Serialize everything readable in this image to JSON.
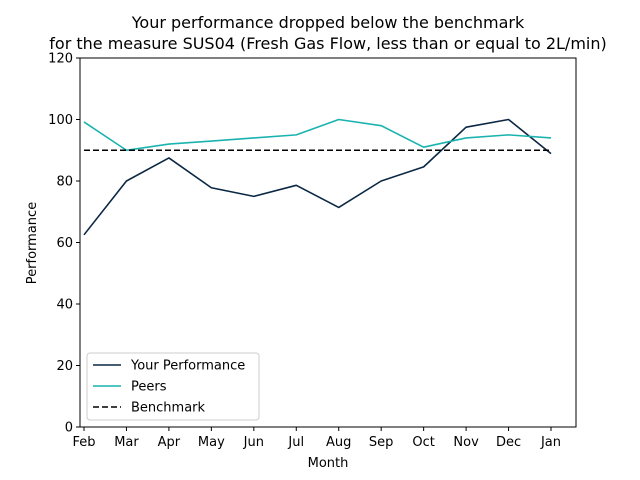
{
  "chart_data": {
    "type": "line",
    "title_line1": "Your performance dropped below the benchmark",
    "title_line2": "for the measure SUS04 (Fresh Gas Flow, less than or equal to 2L/min)",
    "xlabel": "Month",
    "ylabel": "Performance",
    "categories": [
      "Feb",
      "Mar",
      "Apr",
      "May",
      "Jun",
      "Jul",
      "Aug",
      "Sep",
      "Oct",
      "Nov",
      "Dec",
      "Jan"
    ],
    "ylim": [
      0,
      120
    ],
    "yticks": [
      0,
      20,
      40,
      60,
      80,
      100,
      120
    ],
    "grid": false,
    "legend_position": "lower-left",
    "series": [
      {
        "name": "Your Performance",
        "color": "#0b2744",
        "style": "solid",
        "values": [
          62.5,
          80,
          87.5,
          77.8,
          75,
          78.6,
          71.4,
          80,
          84.6,
          97.5,
          100,
          88.9
        ]
      },
      {
        "name": "Peers",
        "color": "#1ab3b0",
        "style": "solid",
        "values": [
          99.2,
          90,
          92,
          93,
          94,
          95,
          100,
          98,
          91,
          94,
          95,
          94
        ]
      },
      {
        "name": "Benchmark",
        "color": "#000000",
        "style": "dashed",
        "values": [
          90,
          90,
          90,
          90,
          90,
          90,
          90,
          90,
          90,
          90,
          90,
          90
        ]
      }
    ]
  }
}
